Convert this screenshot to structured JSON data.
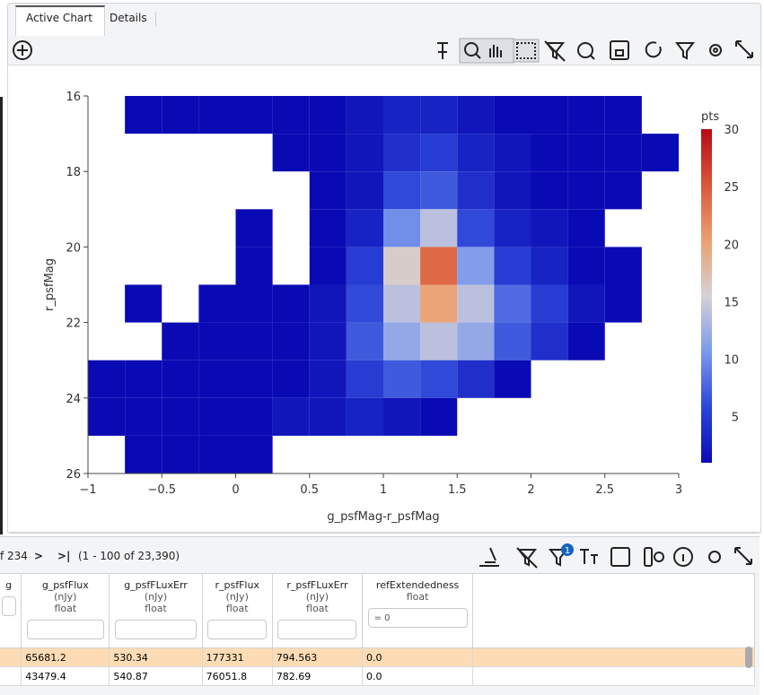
{
  "tabs": [
    "Active Chart",
    "Details"
  ],
  "chart_data": {
    "type": "heatmap",
    "x_label": "g_psfMag-r_psfMag",
    "y_label": "r_psfMag",
    "xlim": [
      -1,
      3
    ],
    "xticks": [
      {
        "value": -1,
        "label": "−1"
      },
      {
        "value": -0.5,
        "label": "−0.5"
      },
      0,
      0.5,
      1,
      1.5,
      2,
      2.5,
      3
    ],
    "ylim": [
      16,
      26
    ],
    "y_reversed": true,
    "yticks": [
      16,
      18,
      20,
      22,
      24,
      26
    ],
    "x_bins": [
      -1,
      -0.75,
      -0.5,
      -0.25,
      0,
      0.25,
      0.5,
      0.75,
      1,
      1.25,
      1.5,
      1.75,
      2,
      2.25,
      2.5,
      2.75,
      3
    ],
    "y_bins": [
      16,
      17,
      18,
      19,
      20,
      21,
      22,
      23,
      24,
      25,
      26
    ],
    "values": [
      [
        null,
        1,
        1,
        1,
        1,
        1,
        1,
        2,
        3,
        3,
        2,
        1,
        1,
        1,
        1,
        null
      ],
      [
        null,
        null,
        null,
        null,
        null,
        1,
        1,
        2,
        4,
        5,
        3,
        2,
        1,
        1,
        1,
        1
      ],
      [
        null,
        null,
        null,
        null,
        null,
        null,
        1,
        2,
        6,
        7,
        4,
        2,
        1,
        1,
        1,
        null
      ],
      [
        null,
        null,
        null,
        null,
        1,
        null,
        1,
        3,
        10,
        14,
        6,
        3,
        2,
        1,
        null,
        null
      ],
      [
        null,
        null,
        null,
        null,
        1,
        null,
        1,
        5,
        16,
        24,
        11,
        5,
        3,
        1,
        1,
        null
      ],
      [
        null,
        1,
        null,
        1,
        1,
        1,
        2,
        6,
        14,
        20,
        14,
        8,
        5,
        2,
        1,
        null
      ],
      [
        null,
        null,
        1,
        1,
        1,
        1,
        2,
        7,
        12,
        14,
        12,
        7,
        4,
        1,
        null,
        null
      ],
      [
        1,
        1,
        1,
        1,
        1,
        1,
        2,
        5,
        7,
        6,
        4,
        1,
        null,
        null,
        null,
        null
      ],
      [
        1,
        1,
        1,
        1,
        1,
        2,
        2,
        3,
        2,
        1,
        null,
        null,
        null,
        null,
        null,
        null
      ],
      [
        null,
        1,
        1,
        1,
        1,
        null,
        null,
        null,
        null,
        null,
        null,
        null,
        null,
        null,
        null,
        null
      ]
    ],
    "colorbar_title": "pts",
    "zlim": [
      1,
      30
    ],
    "zticks": [
      5,
      10,
      15,
      20,
      25,
      30
    ],
    "colorscale": [
      "#0a0ab4",
      "#2d46d8",
      "#7c99ec",
      "#d6d1d6",
      "#eba170",
      "#d9573a",
      "#b40a16"
    ]
  },
  "pagination": {
    "page_of": "f 234",
    "next": ">",
    "last": ">|",
    "range": "(1 - 100 of 23,390)",
    "filter_badge": "1"
  },
  "table": {
    "columns": [
      {
        "name": "g",
        "unit": "",
        "type": "",
        "filter": ""
      },
      {
        "name": "g_psfFlux",
        "unit": "(nJy)",
        "type": "float",
        "filter": ""
      },
      {
        "name": "g_psfFLuxErr",
        "unit": "(nJy)",
        "type": "float",
        "filter": ""
      },
      {
        "name": "r_psfFlux",
        "unit": "(nJy)",
        "type": "float",
        "filter": ""
      },
      {
        "name": "r_psfFLuxErr",
        "unit": "(nJy)",
        "type": "float",
        "filter": ""
      },
      {
        "name": "refExtendedness",
        "unit": "",
        "type": "float",
        "filter": "= 0"
      }
    ],
    "rows": [
      [
        "",
        "65681.2",
        "530.34",
        "177331",
        "794.563",
        "0.0"
      ],
      [
        "",
        "43479.4",
        "540.87",
        "76051.8",
        "782.69",
        "0.0"
      ]
    ]
  }
}
